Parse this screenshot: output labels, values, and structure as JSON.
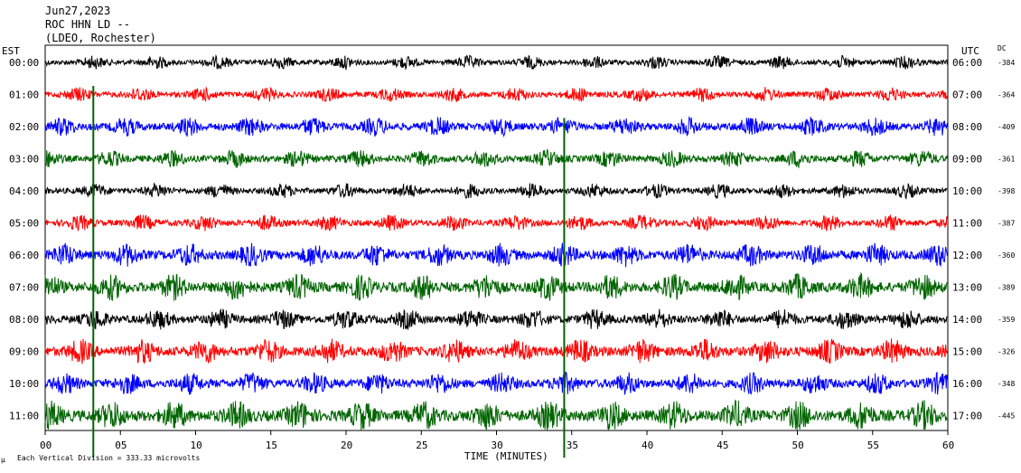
{
  "header": {
    "date": "Jun27,2023",
    "station": "ROC HHN LD --",
    "network": "(LDEO, Rochester)"
  },
  "left_axis_title": "EST",
  "right_axis_title": "UTC",
  "dc_title": "DC",
  "x_axis_title": "TIME (MINUTES)",
  "scale_note": "Each Vertical Division =  333.33 microvolts",
  "corner_mark": "μ",
  "colors": {
    "black": "#000000",
    "red": "#ff0000",
    "blue": "#0000ff",
    "green": "#006400"
  },
  "chart_data": {
    "type": "line",
    "title": "ROC HHN LD --",
    "xlabel": "TIME (MINUTES)",
    "xlim": [
      0,
      60
    ],
    "x_ticks": [
      "00",
      "05",
      "10",
      "15",
      "20",
      "25",
      "30",
      "35",
      "40",
      "45",
      "50",
      "55",
      "60"
    ],
    "tick_values": [
      0,
      5,
      10,
      15,
      20,
      25,
      30,
      35,
      40,
      45,
      50,
      55,
      60
    ],
    "rows": [
      {
        "est": "00:00",
        "utc": "06:00",
        "dc": "-384",
        "color": "black",
        "amplitude": 0.45
      },
      {
        "est": "01:00",
        "utc": "07:00",
        "dc": "-364",
        "color": "red",
        "amplitude": 0.5
      },
      {
        "est": "02:00",
        "utc": "08:00",
        "dc": "-409",
        "color": "blue",
        "amplitude": 0.65
      },
      {
        "est": "03:00",
        "utc": "09:00",
        "dc": "-361",
        "color": "green",
        "amplitude": 0.6
      },
      {
        "est": "04:00",
        "utc": "10:00",
        "dc": "-398",
        "color": "black",
        "amplitude": 0.5
      },
      {
        "est": "05:00",
        "utc": "11:00",
        "dc": "-387",
        "color": "red",
        "amplitude": 0.55
      },
      {
        "est": "06:00",
        "utc": "12:00",
        "dc": "-360",
        "color": "blue",
        "amplitude": 0.8
      },
      {
        "est": "07:00",
        "utc": "13:00",
        "dc": "-389",
        "color": "green",
        "amplitude": 0.9
      },
      {
        "est": "08:00",
        "utc": "14:00",
        "dc": "-359",
        "color": "black",
        "amplitude": 0.7
      },
      {
        "est": "09:00",
        "utc": "15:00",
        "dc": "-326",
        "color": "red",
        "amplitude": 0.85
      },
      {
        "est": "10:00",
        "utc": "16:00",
        "dc": "-348",
        "color": "blue",
        "amplitude": 0.75
      },
      {
        "est": "11:00",
        "utc": "17:00",
        "dc": "-445",
        "color": "green",
        "amplitude": 1.0
      }
    ],
    "events": [
      {
        "row": 2,
        "minute": 3.2,
        "label": ""
      },
      {
        "row": 3,
        "minute": 34.5,
        "label": ""
      }
    ]
  }
}
